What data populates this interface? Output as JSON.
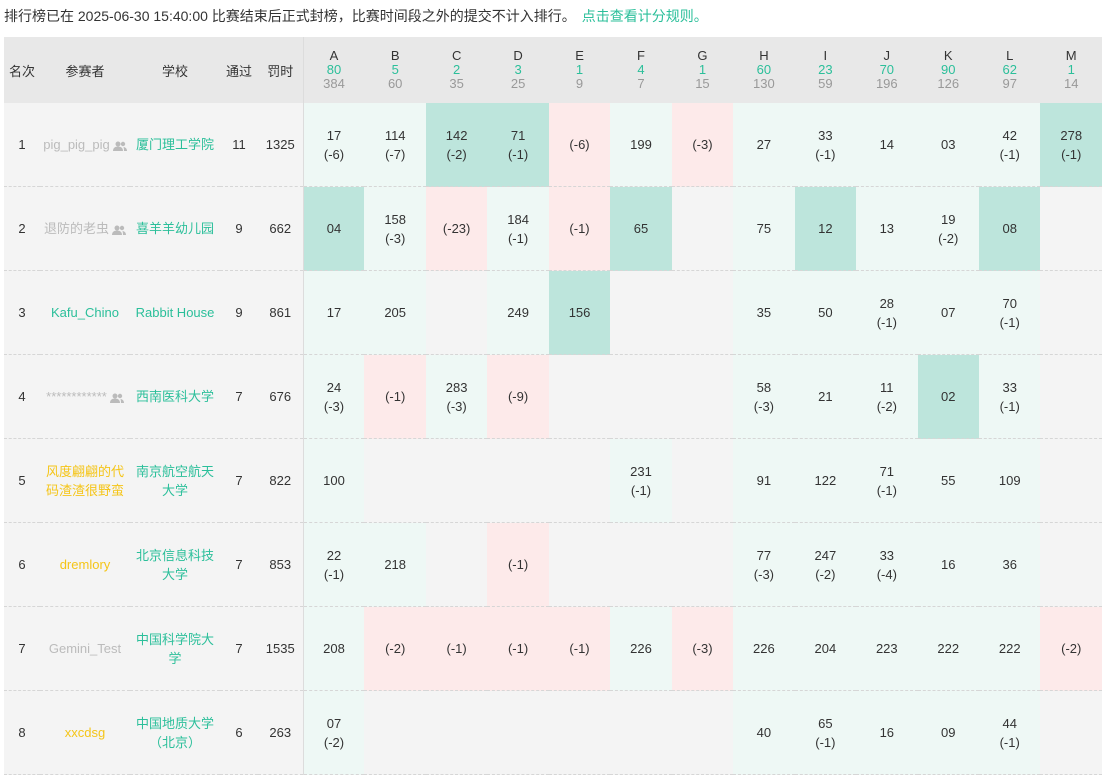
{
  "notice": {
    "text": "排行榜已在 2025-06-30 15:40:00 比赛结束后正式封榜，比赛时间段之外的提交不计入排行。",
    "link": "点击查看计分规则。",
    "accent": "#2bbf9a"
  },
  "headers": {
    "rank": "名次",
    "name": "参赛者",
    "school": "学校",
    "solved": "通过",
    "penalty": "罚时"
  },
  "problems": [
    {
      "id": "A",
      "solved": "80",
      "tried": "384"
    },
    {
      "id": "B",
      "solved": "5",
      "tried": "60"
    },
    {
      "id": "C",
      "solved": "2",
      "tried": "35"
    },
    {
      "id": "D",
      "solved": "3",
      "tried": "25"
    },
    {
      "id": "E",
      "solved": "1",
      "tried": "9"
    },
    {
      "id": "F",
      "solved": "4",
      "tried": "7"
    },
    {
      "id": "G",
      "solved": "1",
      "tried": "15"
    },
    {
      "id": "H",
      "solved": "60",
      "tried": "130"
    },
    {
      "id": "I",
      "solved": "23",
      "tried": "59"
    },
    {
      "id": "J",
      "solved": "70",
      "tried": "196"
    },
    {
      "id": "K",
      "solved": "90",
      "tried": "126"
    },
    {
      "id": "L",
      "solved": "62",
      "tried": "97"
    },
    {
      "id": "M",
      "solved": "1",
      "tried": "14"
    }
  ],
  "status_colors": {
    "ac": "#eef8f5",
    "first_blood": "#bde5dc",
    "wrong": "#fdeaea",
    "none": "#f4f4f4"
  },
  "rows": [
    {
      "rank": "1",
      "name": "pig_pig_pig",
      "name_color": "gray",
      "team_icon": true,
      "school": "厦门理工学院",
      "solved": "11",
      "penalty": "1325",
      "cells": [
        [
          "ac",
          "17",
          "(-6)"
        ],
        [
          "ac",
          "114",
          "(-7)"
        ],
        [
          "fb",
          "142",
          "(-2)"
        ],
        [
          "fb",
          "71",
          "(-1)"
        ],
        [
          "wa",
          "",
          "(-6)"
        ],
        [
          "ac",
          "199",
          ""
        ],
        [
          "wa",
          "",
          "(-3)"
        ],
        [
          "ac",
          "27",
          ""
        ],
        [
          "ac",
          "33",
          "(-1)"
        ],
        [
          "ac",
          "14",
          ""
        ],
        [
          "ac",
          "03",
          ""
        ],
        [
          "ac",
          "42",
          "(-1)"
        ],
        [
          "fb",
          "278",
          "(-1)"
        ]
      ]
    },
    {
      "rank": "2",
      "name": "退防的老虫",
      "name_color": "gray",
      "team_icon": true,
      "school": "喜羊羊幼儿园",
      "solved": "9",
      "penalty": "662",
      "cells": [
        [
          "fb",
          "04",
          ""
        ],
        [
          "ac",
          "158",
          "(-3)"
        ],
        [
          "wa",
          "",
          "(-23)"
        ],
        [
          "ac",
          "184",
          "(-1)"
        ],
        [
          "wa",
          "",
          "(-1)"
        ],
        [
          "fb",
          "65",
          ""
        ],
        [
          "",
          "",
          ""
        ],
        [
          "ac",
          "75",
          ""
        ],
        [
          "fb",
          "12",
          ""
        ],
        [
          "ac",
          "13",
          ""
        ],
        [
          "ac",
          "19",
          "(-2)"
        ],
        [
          "fb",
          "08",
          ""
        ],
        [
          "",
          "",
          ""
        ]
      ]
    },
    {
      "rank": "3",
      "name": "Kafu_Chino",
      "name_color": "teal",
      "team_icon": false,
      "school": "Rabbit House",
      "solved": "9",
      "penalty": "861",
      "cells": [
        [
          "ac",
          "17",
          ""
        ],
        [
          "ac",
          "205",
          ""
        ],
        [
          "",
          "",
          ""
        ],
        [
          "ac",
          "249",
          ""
        ],
        [
          "fb",
          "156",
          ""
        ],
        [
          "",
          "",
          ""
        ],
        [
          "",
          "",
          ""
        ],
        [
          "ac",
          "35",
          ""
        ],
        [
          "ac",
          "50",
          ""
        ],
        [
          "ac",
          "28",
          "(-1)"
        ],
        [
          "ac",
          "07",
          ""
        ],
        [
          "ac",
          "70",
          "(-1)"
        ],
        [
          "",
          "",
          ""
        ]
      ]
    },
    {
      "rank": "4",
      "name": "************",
      "name_color": "gray",
      "team_icon": true,
      "school": "西南医科大学",
      "solved": "7",
      "penalty": "676",
      "cells": [
        [
          "ac",
          "24",
          "(-3)"
        ],
        [
          "wa",
          "",
          "(-1)"
        ],
        [
          "ac",
          "283",
          "(-3)"
        ],
        [
          "wa",
          "",
          "(-9)"
        ],
        [
          "",
          "",
          ""
        ],
        [
          "",
          "",
          ""
        ],
        [
          "",
          "",
          ""
        ],
        [
          "ac",
          "58",
          "(-3)"
        ],
        [
          "ac",
          "21",
          ""
        ],
        [
          "ac",
          "11",
          "(-2)"
        ],
        [
          "fb",
          "02",
          ""
        ],
        [
          "ac",
          "33",
          "(-1)"
        ],
        [
          "",
          "",
          ""
        ]
      ]
    },
    {
      "rank": "5",
      "name": "风度翩翩的代码渣渣很野蛮",
      "name_color": "yellow",
      "team_icon": false,
      "school": "南京航空航天大学",
      "solved": "7",
      "penalty": "822",
      "cells": [
        [
          "ac",
          "100",
          ""
        ],
        [
          "",
          "",
          ""
        ],
        [
          "",
          "",
          ""
        ],
        [
          "",
          "",
          ""
        ],
        [
          "",
          "",
          ""
        ],
        [
          "ac",
          "231",
          "(-1)"
        ],
        [
          "",
          "",
          ""
        ],
        [
          "ac",
          "91",
          ""
        ],
        [
          "ac",
          "122",
          ""
        ],
        [
          "ac",
          "71",
          "(-1)"
        ],
        [
          "ac",
          "55",
          ""
        ],
        [
          "ac",
          "109",
          ""
        ],
        [
          "",
          "",
          ""
        ]
      ]
    },
    {
      "rank": "6",
      "name": "dremlory",
      "name_color": "yellow",
      "team_icon": false,
      "school": "北京信息科技大学",
      "solved": "7",
      "penalty": "853",
      "cells": [
        [
          "ac",
          "22",
          "(-1)"
        ],
        [
          "ac",
          "218",
          ""
        ],
        [
          "",
          "",
          ""
        ],
        [
          "wa",
          "",
          "(-1)"
        ],
        [
          "",
          "",
          ""
        ],
        [
          "",
          "",
          ""
        ],
        [
          "",
          "",
          ""
        ],
        [
          "ac",
          "77",
          "(-3)"
        ],
        [
          "ac",
          "247",
          "(-2)"
        ],
        [
          "ac",
          "33",
          "(-4)"
        ],
        [
          "ac",
          "16",
          ""
        ],
        [
          "ac",
          "36",
          ""
        ],
        [
          "",
          "",
          ""
        ]
      ]
    },
    {
      "rank": "7",
      "name": "Gemini_Test",
      "name_color": "gray",
      "team_icon": false,
      "school": "中国科学院大学",
      "solved": "7",
      "penalty": "1535",
      "cells": [
        [
          "ac",
          "208",
          ""
        ],
        [
          "wa",
          "",
          "(-2)"
        ],
        [
          "wa",
          "",
          "(-1)"
        ],
        [
          "wa",
          "",
          "(-1)"
        ],
        [
          "wa",
          "",
          "(-1)"
        ],
        [
          "ac",
          "226",
          ""
        ],
        [
          "wa",
          "",
          "(-3)"
        ],
        [
          "ac",
          "226",
          ""
        ],
        [
          "ac",
          "204",
          ""
        ],
        [
          "ac",
          "223",
          ""
        ],
        [
          "ac",
          "222",
          ""
        ],
        [
          "ac",
          "222",
          ""
        ],
        [
          "wa",
          "",
          "(-2)"
        ]
      ]
    },
    {
      "rank": "8",
      "name": "xxcdsg",
      "name_color": "yellow",
      "team_icon": false,
      "school": "中国地质大学（北京）",
      "solved": "6",
      "penalty": "263",
      "cells": [
        [
          "ac",
          "07",
          "(-2)"
        ],
        [
          "",
          "",
          ""
        ],
        [
          "",
          "",
          ""
        ],
        [
          "",
          "",
          ""
        ],
        [
          "",
          "",
          ""
        ],
        [
          "",
          "",
          ""
        ],
        [
          "",
          "",
          ""
        ],
        [
          "ac",
          "40",
          ""
        ],
        [
          "ac",
          "65",
          "(-1)"
        ],
        [
          "ac",
          "16",
          ""
        ],
        [
          "ac",
          "09",
          ""
        ],
        [
          "ac",
          "44",
          "(-1)"
        ],
        [
          "",
          "",
          ""
        ]
      ]
    }
  ]
}
